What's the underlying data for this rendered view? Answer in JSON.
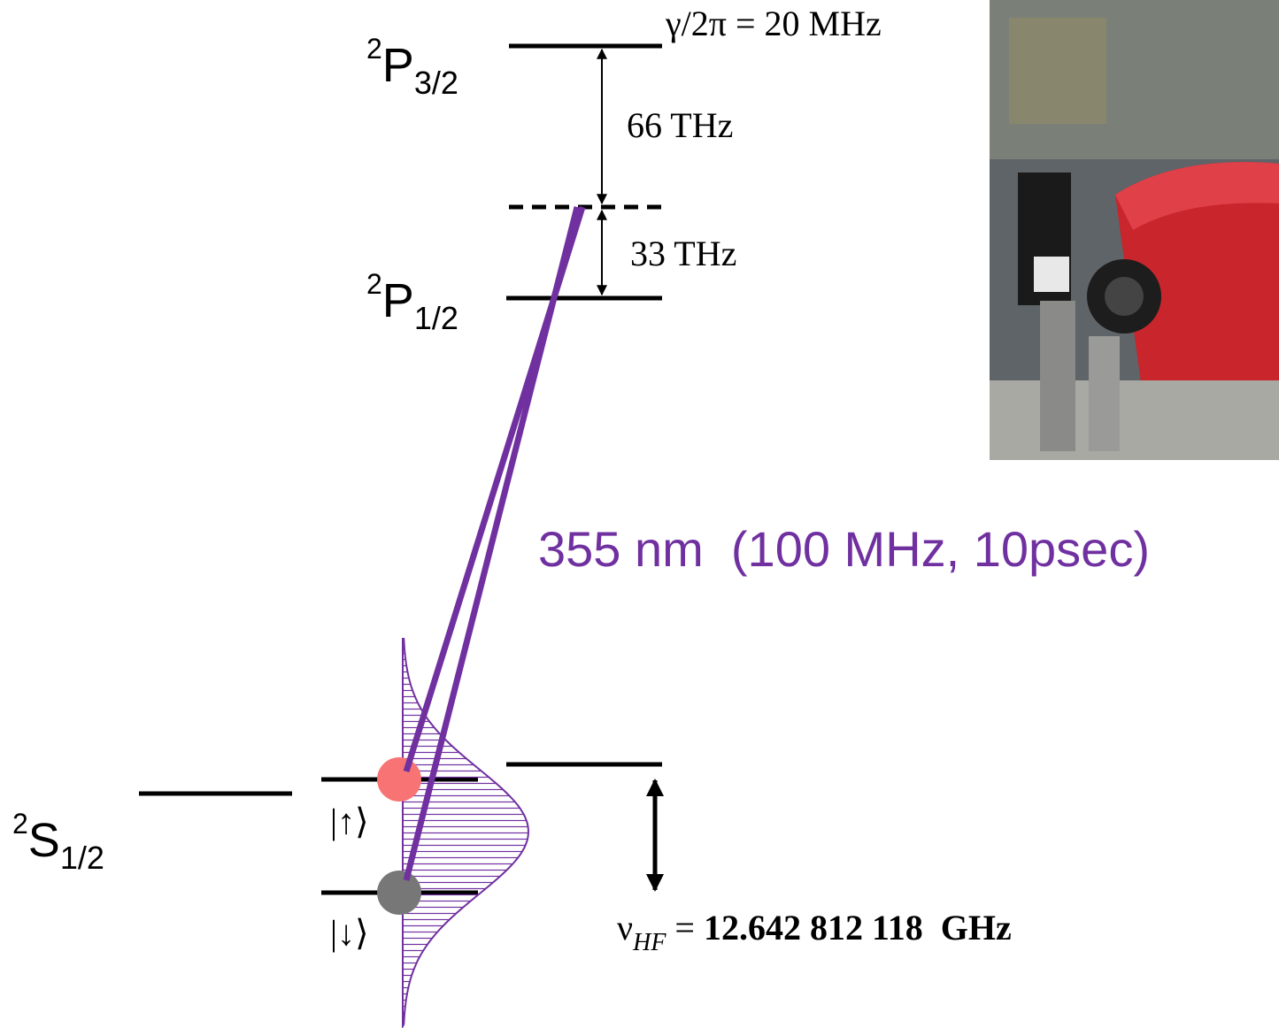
{
  "levels": {
    "p32": {
      "sup": "2",
      "letter": "P",
      "sub": "3/2"
    },
    "p12": {
      "sup": "2",
      "letter": "P",
      "sub": "1/2"
    },
    "s12": {
      "sup": "2",
      "letter": "S",
      "sub": "1/2"
    }
  },
  "linewidth": "γ/2π = 20 MHz",
  "splittings": {
    "upper": "66 THz",
    "lower": "33 THz"
  },
  "laser": "355 nm  (100 MHz, 10psec)",
  "states": {
    "up": "|↑⟩",
    "down": "|↓⟩"
  },
  "hyperfine": {
    "symbol": "ν",
    "subscript": "HF",
    "equals": "=",
    "value": "12.642 812 118  GHz"
  }
}
